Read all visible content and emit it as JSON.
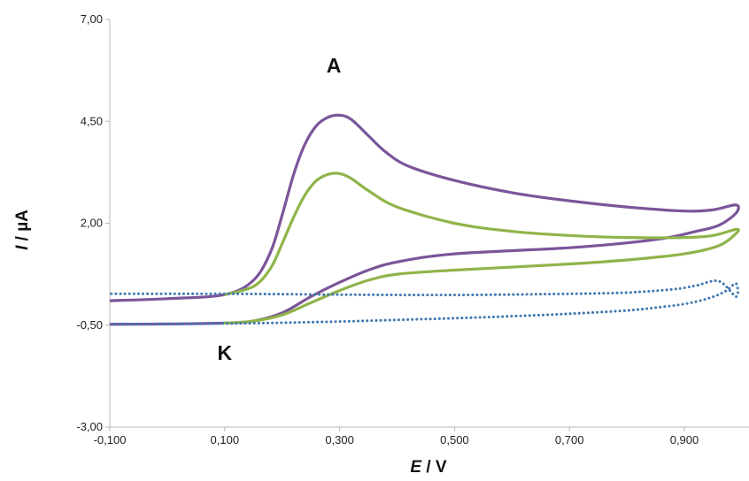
{
  "chart_data": {
    "type": "line",
    "title": "",
    "xlabel_italic": "E",
    "xlabel_rest": " / V",
    "ylabel_italic": "I",
    "ylabel_rest": " / µA",
    "xlim": [
      -0.1,
      1.0
    ],
    "ylim": [
      -3.0,
      7.0
    ],
    "x_ticks": [
      -0.1,
      0.1,
      0.3,
      0.5,
      0.7,
      0.9
    ],
    "x_tick_labels": [
      "-0,100",
      "0,100",
      "0,300",
      "0,500",
      "0,700",
      "0,900"
    ],
    "y_ticks": [
      -3.0,
      -0.5,
      2.0,
      4.5,
      7.0
    ],
    "y_tick_labels": [
      "-3,00",
      "-0,50",
      "2,00",
      "4,50",
      "7,00"
    ],
    "grid": false,
    "legend": "none",
    "annotations": [
      {
        "text": "A",
        "x": 0.29,
        "y": 5.7
      },
      {
        "text": "K",
        "x": 0.1,
        "y": -1.35
      }
    ],
    "series": [
      {
        "color": "#7b559a",
        "style": "solid",
        "x": [
          -0.1,
          0.0,
          0.1,
          0.15,
          0.18,
          0.2,
          0.22,
          0.24,
          0.26,
          0.28,
          0.3,
          0.32,
          0.35,
          0.38,
          0.42,
          0.5,
          0.6,
          0.7,
          0.8,
          0.9,
          0.95,
          0.99,
          0.99,
          0.96,
          0.92,
          0.85,
          0.7,
          0.5,
          0.4,
          0.35,
          0.3,
          0.25,
          0.2,
          0.15,
          0.1,
          0.0,
          -0.1
        ],
        "y": [
          0.1,
          0.15,
          0.25,
          0.6,
          1.3,
          2.2,
          3.2,
          3.95,
          4.4,
          4.6,
          4.65,
          4.55,
          4.15,
          3.75,
          3.4,
          3.05,
          2.75,
          2.55,
          2.4,
          2.3,
          2.33,
          2.45,
          2.25,
          1.95,
          1.8,
          1.6,
          1.4,
          1.25,
          1.05,
          0.85,
          0.55,
          0.2,
          -0.2,
          -0.4,
          -0.45,
          -0.47,
          -0.48
        ]
      },
      {
        "color": "#8fb44a",
        "style": "solid",
        "x": [
          0.1,
          0.15,
          0.18,
          0.2,
          0.22,
          0.24,
          0.26,
          0.28,
          0.3,
          0.32,
          0.35,
          0.4,
          0.5,
          0.6,
          0.7,
          0.8,
          0.9,
          0.95,
          0.99,
          0.99,
          0.96,
          0.9,
          0.8,
          0.7,
          0.5,
          0.4,
          0.35,
          0.3,
          0.25,
          0.2,
          0.15,
          0.1
        ],
        "y": [
          0.25,
          0.45,
          0.9,
          1.5,
          2.15,
          2.7,
          3.05,
          3.2,
          3.22,
          3.1,
          2.8,
          2.4,
          2.0,
          1.8,
          1.7,
          1.65,
          1.65,
          1.7,
          1.85,
          1.75,
          1.45,
          1.25,
          1.1,
          1.0,
          0.85,
          0.75,
          0.6,
          0.35,
          0.05,
          -0.25,
          -0.4,
          -0.45
        ]
      },
      {
        "color": "#3f78b0",
        "style": "dotted",
        "x": [
          -0.1,
          0.0,
          0.1,
          0.2,
          0.3,
          0.4,
          0.5,
          0.6,
          0.7,
          0.8,
          0.85,
          0.9,
          0.94,
          0.97,
          0.99,
          0.99,
          0.96,
          0.92,
          0.88,
          0.8,
          0.7,
          0.5,
          0.3,
          0.1,
          0.0,
          -0.1
        ],
        "y": [
          -0.47,
          -0.47,
          -0.46,
          -0.44,
          -0.41,
          -0.37,
          -0.33,
          -0.28,
          -0.22,
          -0.14,
          -0.07,
          0.02,
          0.15,
          0.32,
          0.52,
          0.2,
          0.58,
          0.47,
          0.38,
          0.3,
          0.27,
          0.24,
          0.25,
          0.27,
          0.27,
          0.27
        ]
      }
    ]
  }
}
